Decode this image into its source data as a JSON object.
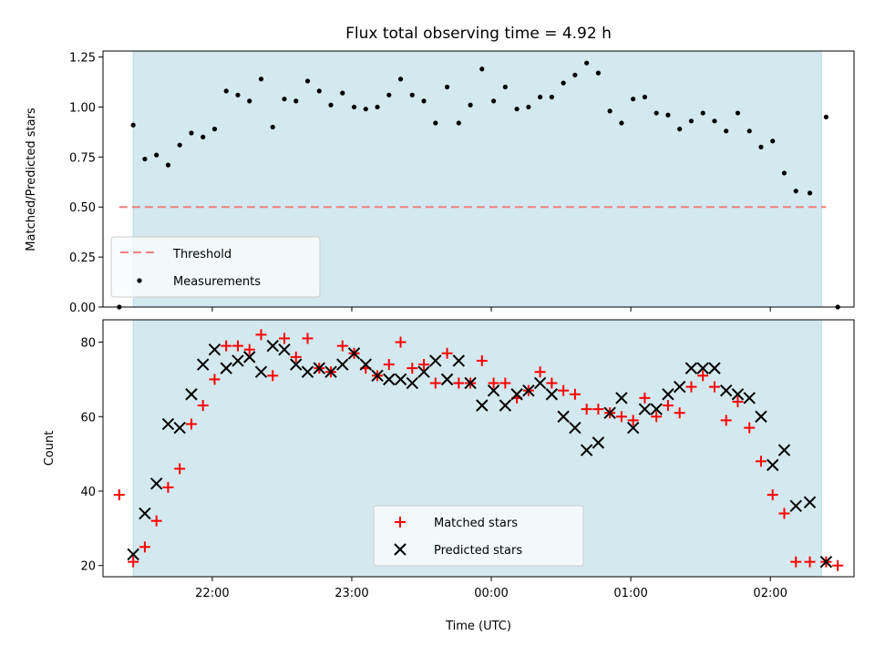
{
  "chart_data": [
    {
      "type": "scatter",
      "title": "Flux total observing time = 4.92 h",
      "ylabel": "Matched/Predicted stars",
      "xlabel": "",
      "x_unit": "time (UTC)",
      "x_range": [
        "21:13",
        "02:36"
      ],
      "ylim": [
        0,
        1.28
      ],
      "yticks": [
        "0.00",
        "0.25",
        "0.50",
        "0.75",
        "1.00",
        "1.25"
      ],
      "xticks": [
        "22:00",
        "23:00",
        "00:00",
        "01:00",
        "02:00"
      ],
      "shaded_span": [
        "21:26",
        "02:22"
      ],
      "shaded_color": "#d3e9ef",
      "threshold": {
        "name": "Threshold",
        "value": 0.5,
        "from": "21:20",
        "to": "02:24",
        "color": "#f07f7f"
      },
      "legend": {
        "location": "lower-left",
        "entries": [
          "Threshold",
          "Measurements"
        ]
      },
      "series": [
        {
          "name": "Measurements",
          "color": "#000000",
          "marker": "dot",
          "x": [
            "21:20",
            "21:26",
            "21:31",
            "21:36",
            "21:41",
            "21:46",
            "21:51",
            "21:56",
            "22:01",
            "22:06",
            "22:11",
            "22:16",
            "22:21",
            "22:26",
            "22:31",
            "22:36",
            "22:41",
            "22:46",
            "22:51",
            "22:56",
            "23:01",
            "23:06",
            "23:11",
            "23:16",
            "23:21",
            "23:26",
            "23:31",
            "23:36",
            "23:41",
            "23:46",
            "23:51",
            "23:56",
            "00:01",
            "00:06",
            "00:11",
            "00:16",
            "00:21",
            "00:26",
            "00:31",
            "00:36",
            "00:41",
            "00:46",
            "00:51",
            "00:56",
            "01:01",
            "01:06",
            "01:11",
            "01:16",
            "01:21",
            "01:26",
            "01:31",
            "01:36",
            "01:41",
            "01:46",
            "01:51",
            "01:56",
            "02:01",
            "02:06",
            "02:11",
            "02:17",
            "02:24",
            "02:29"
          ],
          "y": [
            0.0,
            0.91,
            0.74,
            0.76,
            0.71,
            0.81,
            0.87,
            0.85,
            0.89,
            1.08,
            1.06,
            1.03,
            1.14,
            0.9,
            1.04,
            1.03,
            1.13,
            1.08,
            1.01,
            1.07,
            1.0,
            0.99,
            1.0,
            1.06,
            1.14,
            1.06,
            1.03,
            0.92,
            1.1,
            0.92,
            1.01,
            1.19,
            1.03,
            1.1,
            0.99,
            1.0,
            1.05,
            1.05,
            1.12,
            1.16,
            1.22,
            1.17,
            0.98,
            0.92,
            1.04,
            1.05,
            0.97,
            0.96,
            0.89,
            0.93,
            0.97,
            0.93,
            0.88,
            0.97,
            0.88,
            0.8,
            0.83,
            0.67,
            0.58,
            0.57,
            0.95,
            0.0
          ]
        }
      ]
    },
    {
      "type": "scatter",
      "title": "",
      "ylabel": "Count",
      "xlabel": "Time (UTC)",
      "x_unit": "time (UTC)",
      "x_range": [
        "21:13",
        "02:36"
      ],
      "ylim": [
        17,
        86
      ],
      "yticks": [
        "20",
        "40",
        "60",
        "80"
      ],
      "xticks": [
        "22:00",
        "23:00",
        "00:00",
        "01:00",
        "02:00"
      ],
      "shaded_span": [
        "21:26",
        "02:22"
      ],
      "shaded_color": "#d3e9ef",
      "legend": {
        "location": "lower-center",
        "entries": [
          "Matched stars",
          "Predicted stars"
        ]
      },
      "series": [
        {
          "name": "Matched stars",
          "color": "#ff0000",
          "marker": "plus",
          "x": [
            "21:20",
            "21:26",
            "21:31",
            "21:36",
            "21:41",
            "21:46",
            "21:51",
            "21:56",
            "22:01",
            "22:06",
            "22:11",
            "22:16",
            "22:21",
            "22:26",
            "22:31",
            "22:36",
            "22:41",
            "22:46",
            "22:51",
            "22:56",
            "23:01",
            "23:06",
            "23:11",
            "23:16",
            "23:21",
            "23:26",
            "23:31",
            "23:36",
            "23:41",
            "23:46",
            "23:51",
            "23:56",
            "00:01",
            "00:06",
            "00:11",
            "00:16",
            "00:21",
            "00:26",
            "00:31",
            "00:36",
            "00:41",
            "00:46",
            "00:51",
            "00:56",
            "01:01",
            "01:06",
            "01:11",
            "01:16",
            "01:21",
            "01:26",
            "01:31",
            "01:36",
            "01:41",
            "01:46",
            "01:51",
            "01:56",
            "02:01",
            "02:06",
            "02:11",
            "02:17",
            "02:24",
            "02:29"
          ],
          "y": [
            39,
            21,
            25,
            32,
            41,
            46,
            58,
            63,
            70,
            79,
            79,
            78,
            82,
            71,
            81,
            76,
            81,
            73,
            72,
            79,
            77,
            73,
            71,
            74,
            80,
            73,
            74,
            69,
            77,
            69,
            69,
            75,
            69,
            69,
            65,
            67,
            72,
            69,
            67,
            66,
            62,
            62,
            61,
            60,
            59,
            65,
            60,
            63,
            61,
            68,
            71,
            68,
            59,
            64,
            57,
            48,
            39,
            34,
            21,
            21,
            21,
            20
          ]
        },
        {
          "name": "Predicted stars",
          "color": "#000000",
          "marker": "x",
          "x": [
            "21:26",
            "21:31",
            "21:36",
            "21:41",
            "21:46",
            "21:51",
            "21:56",
            "22:01",
            "22:06",
            "22:11",
            "22:16",
            "22:21",
            "22:26",
            "22:31",
            "22:36",
            "22:41",
            "22:46",
            "22:51",
            "22:56",
            "23:01",
            "23:06",
            "23:11",
            "23:16",
            "23:21",
            "23:26",
            "23:31",
            "23:36",
            "23:41",
            "23:46",
            "23:51",
            "23:56",
            "00:01",
            "00:06",
            "00:11",
            "00:16",
            "00:21",
            "00:26",
            "00:31",
            "00:36",
            "00:41",
            "00:46",
            "00:51",
            "00:56",
            "01:01",
            "01:06",
            "01:11",
            "01:16",
            "01:21",
            "01:26",
            "01:31",
            "01:36",
            "01:41",
            "01:46",
            "01:51",
            "01:56",
            "02:01",
            "02:06",
            "02:11",
            "02:17",
            "02:24"
          ],
          "y": [
            23,
            34,
            42,
            58,
            57,
            66,
            74,
            78,
            73,
            75,
            76,
            72,
            79,
            78,
            74,
            72,
            73,
            72,
            74,
            77,
            74,
            71,
            70,
            70,
            69,
            72,
            75,
            70,
            75,
            69,
            63,
            67,
            63,
            66,
            67,
            69,
            66,
            60,
            57,
            51,
            53,
            61,
            65,
            57,
            62,
            62,
            66,
            68,
            73,
            73,
            73,
            67,
            66,
            65,
            60,
            47,
            51,
            36,
            37,
            21
          ]
        }
      ]
    }
  ]
}
